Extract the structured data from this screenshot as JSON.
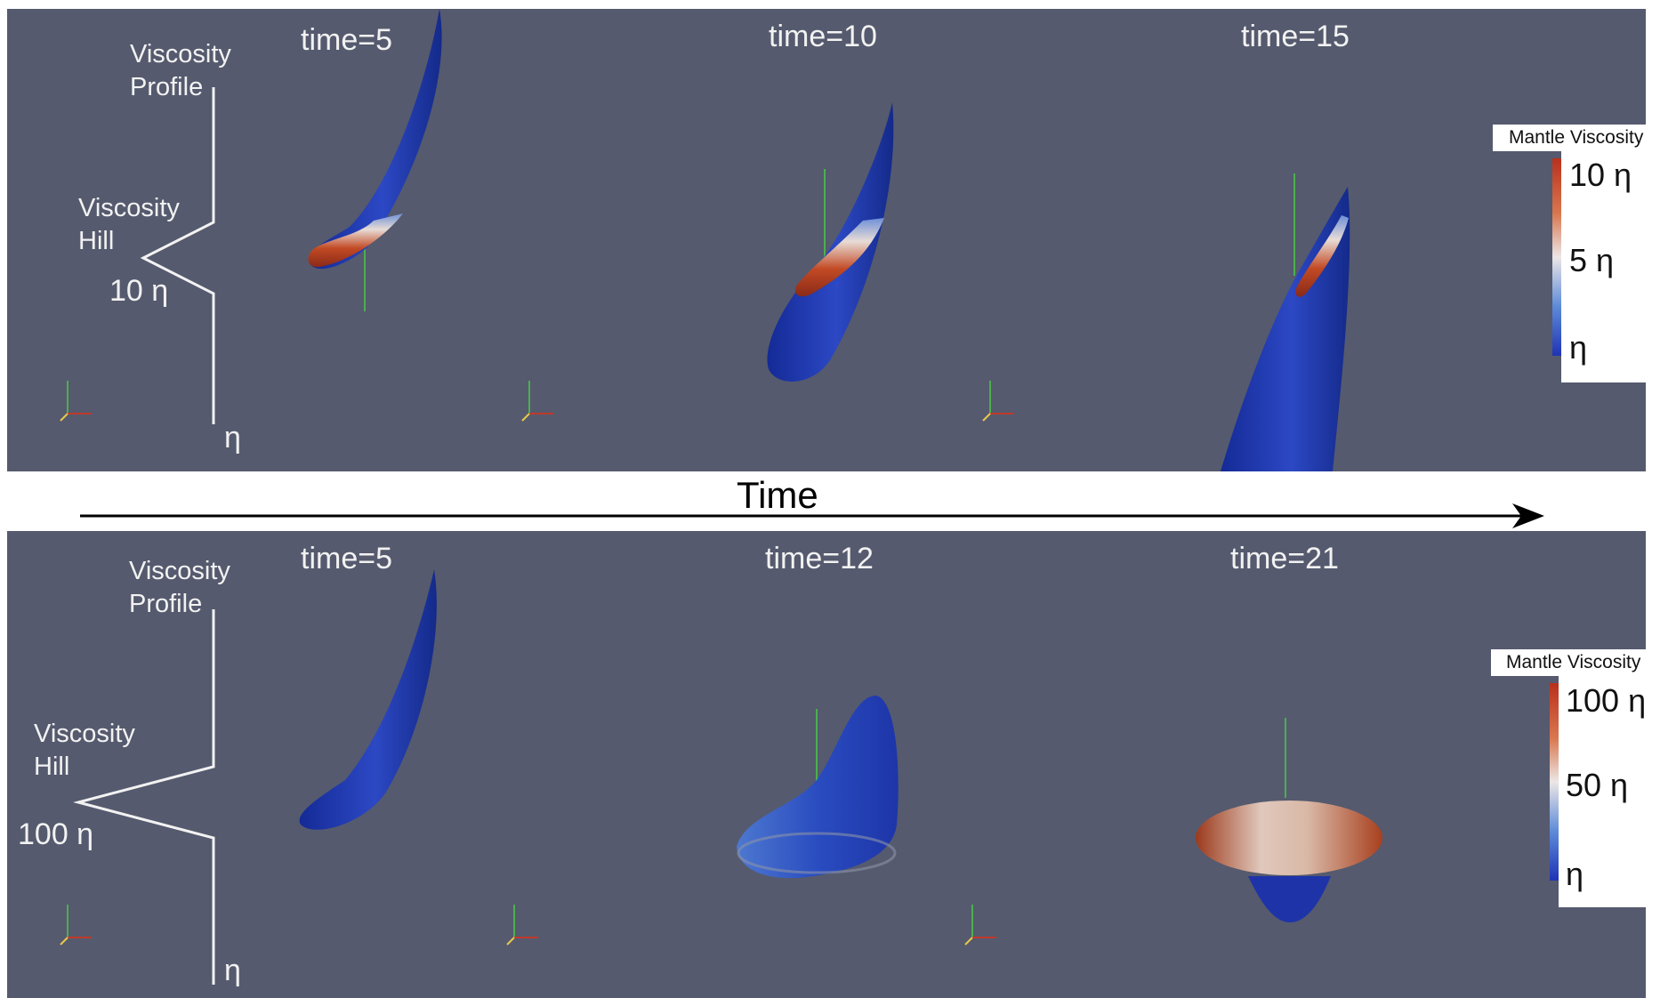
{
  "time_axis": {
    "label": "Time"
  },
  "panels": [
    {
      "id": "top",
      "profile": {
        "title_line1": "Viscosity",
        "title_line2": "Profile",
        "hill_line1": "Viscosity",
        "hill_line2": "Hill",
        "peak_value": "10 η",
        "base_value": "η"
      },
      "snapshots": [
        "time=5",
        "time=10",
        "time=15"
      ],
      "legend": {
        "title": "Mantle Viscosity",
        "ticks": [
          "10 η",
          "5 η",
          "η"
        ]
      }
    },
    {
      "id": "bottom",
      "profile": {
        "title_line1": "Viscosity",
        "title_line2": "Profile",
        "hill_line1": "Viscosity",
        "hill_line2": "Hill",
        "peak_value": "100 η",
        "base_value": "η"
      },
      "snapshots": [
        "time=5",
        "time=12",
        "time=21"
      ],
      "legend": {
        "title": "Mantle Viscosity",
        "ticks": [
          "100 η",
          "50 η",
          "η"
        ]
      }
    }
  ],
  "colors": {
    "background": "#555a6e",
    "plume_blue": "#1f33a8",
    "high_viscosity": "#b9301c",
    "mid_viscosity": "#ece6e6"
  }
}
